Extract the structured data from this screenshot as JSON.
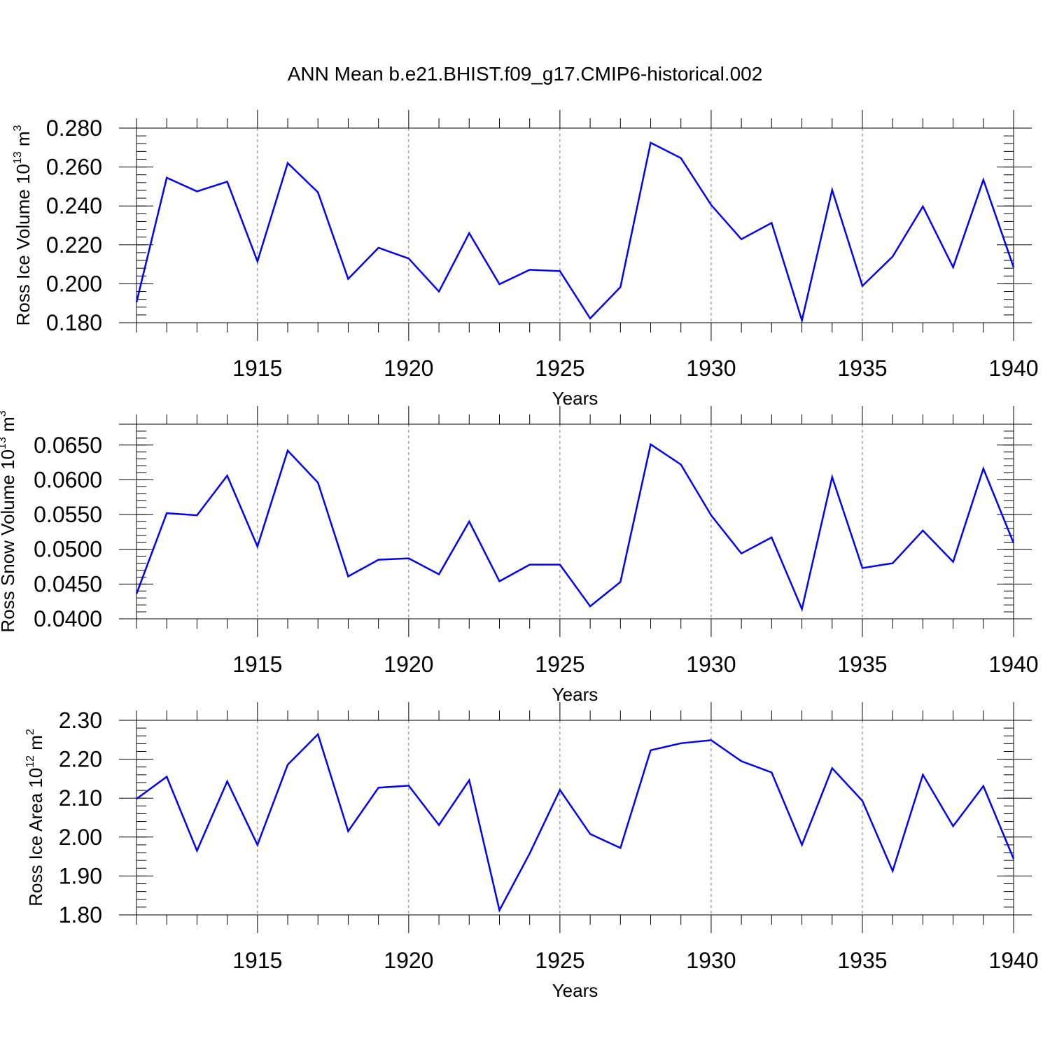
{
  "title": "ANN Mean b.e21.BHIST.f09_g17.CMIP6-historical.002",
  "colors": {
    "line": "#0000ff",
    "axis": "#000000",
    "grid": "#777777"
  },
  "chart_data": [
    {
      "type": "line",
      "ylabel": "Ross Ice Volume 10",
      "ylabel_exp": "13",
      "ylabel_unit": " m",
      "ylabel_unit_exp": "3",
      "xlabel": "Years",
      "xlim": [
        1911,
        1940
      ],
      "ylim": [
        0.18,
        0.28
      ],
      "yticks": [
        0.18,
        0.2,
        0.22,
        0.24,
        0.26,
        0.28
      ],
      "ytick_labels": [
        "0.180",
        "0.200",
        "0.220",
        "0.240",
        "0.260",
        "0.280"
      ],
      "xticks": [
        1915,
        1920,
        1925,
        1930,
        1935,
        1940
      ],
      "xtick_labels": [
        "1915",
        "1920",
        "1925",
        "1930",
        "1935",
        "1940"
      ],
      "x": [
        1911,
        1912,
        1913,
        1914,
        1915,
        1916,
        1917,
        1918,
        1919,
        1920,
        1921,
        1922,
        1923,
        1924,
        1925,
        1926,
        1927,
        1928,
        1929,
        1930,
        1931,
        1932,
        1933,
        1934,
        1935,
        1936,
        1937,
        1938,
        1939,
        1940
      ],
      "series": [
        {
          "name": "Ross Ice Volume",
          "values": [
            0.1905,
            0.2545,
            0.2475,
            0.2525,
            0.2115,
            0.262,
            0.247,
            0.2025,
            0.2185,
            0.213,
            0.196,
            0.226,
            0.1998,
            0.2072,
            0.2065,
            0.1822,
            0.1983,
            0.2725,
            0.2646,
            0.2405,
            0.2229,
            0.2313,
            0.1812,
            0.2482,
            0.1989,
            0.214,
            0.2397,
            0.2085,
            0.2534,
            0.2085
          ]
        }
      ]
    },
    {
      "type": "line",
      "ylabel": "Ross Snow Volume 10",
      "ylabel_exp": "13",
      "ylabel_unit": " m",
      "ylabel_unit_exp": "3",
      "xlabel": "Years",
      "xlim": [
        1911,
        1940
      ],
      "ylim": [
        0.04,
        0.068
      ],
      "yticks": [
        0.04,
        0.045,
        0.05,
        0.055,
        0.06,
        0.065
      ],
      "ytick_labels": [
        "0.0400",
        "0.0450",
        "0.0500",
        "0.0550",
        "0.0600",
        "0.0650"
      ],
      "xticks": [
        1915,
        1920,
        1925,
        1930,
        1935,
        1940
      ],
      "xtick_labels": [
        "1915",
        "1920",
        "1925",
        "1930",
        "1935",
        "1940"
      ],
      "x": [
        1911,
        1912,
        1913,
        1914,
        1915,
        1916,
        1917,
        1918,
        1919,
        1920,
        1921,
        1922,
        1923,
        1924,
        1925,
        1926,
        1927,
        1928,
        1929,
        1930,
        1931,
        1932,
        1933,
        1934,
        1935,
        1936,
        1937,
        1938,
        1939,
        1940
      ],
      "series": [
        {
          "name": "Ross Snow Volume",
          "values": [
            0.0436,
            0.0552,
            0.0549,
            0.0606,
            0.0504,
            0.0642,
            0.0596,
            0.0461,
            0.0485,
            0.0487,
            0.0464,
            0.054,
            0.0454,
            0.0478,
            0.0478,
            0.0418,
            0.0453,
            0.0651,
            0.0622,
            0.0549,
            0.0494,
            0.0517,
            0.0414,
            0.0604,
            0.0473,
            0.048,
            0.0527,
            0.0482,
            0.0616,
            0.0509
          ]
        }
      ]
    },
    {
      "type": "line",
      "ylabel": "Ross Ice Area 10",
      "ylabel_exp": "12",
      "ylabel_unit": " m",
      "ylabel_unit_exp": "2",
      "xlabel": "Years",
      "xlim": [
        1911,
        1940
      ],
      "ylim": [
        1.8,
        2.3
      ],
      "yticks": [
        1.8,
        1.9,
        2.0,
        2.1,
        2.2,
        2.3
      ],
      "ytick_labels": [
        "1.80",
        "1.90",
        "2.00",
        "2.10",
        "2.20",
        "2.30"
      ],
      "xticks": [
        1915,
        1920,
        1925,
        1930,
        1935,
        1940
      ],
      "xtick_labels": [
        "1915",
        "1920",
        "1925",
        "1930",
        "1935",
        "1940"
      ],
      "x": [
        1911,
        1912,
        1913,
        1914,
        1915,
        1916,
        1917,
        1918,
        1919,
        1920,
        1921,
        1922,
        1923,
        1924,
        1925,
        1926,
        1927,
        1928,
        1929,
        1930,
        1931,
        1932,
        1933,
        1934,
        1935,
        1936,
        1937,
        1938,
        1939,
        1940
      ],
      "series": [
        {
          "name": "Ross Ice Area",
          "values": [
            2.098,
            2.155,
            1.965,
            2.143,
            1.98,
            2.186,
            2.264,
            2.015,
            2.127,
            2.132,
            2.031,
            2.146,
            1.812,
            1.958,
            2.121,
            2.008,
            1.972,
            2.223,
            2.241,
            2.249,
            2.195,
            2.166,
            1.98,
            2.177,
            2.093,
            1.913,
            2.16,
            2.028,
            2.131,
            1.944
          ]
        }
      ]
    }
  ]
}
